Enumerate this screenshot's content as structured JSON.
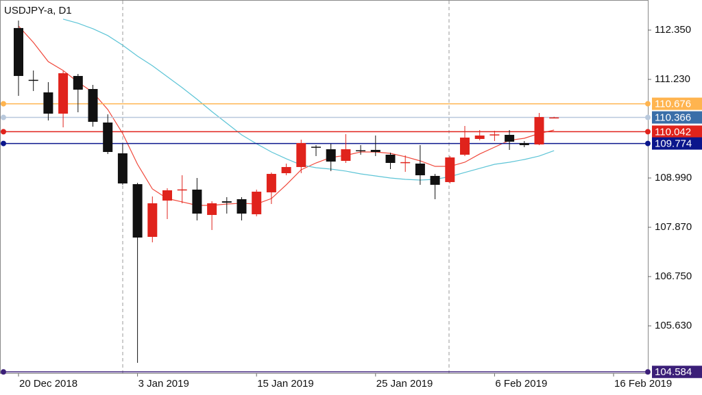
{
  "chart_data": {
    "type": "candlestick",
    "title": "USDJPY-a, D1",
    "categories": [
      "20 Dec 2018",
      null,
      null,
      null,
      null,
      null,
      null,
      null,
      "3 Jan 2019",
      null,
      null,
      null,
      null,
      null,
      null,
      null,
      "15 Jan 2019",
      null,
      null,
      null,
      null,
      null,
      null,
      null,
      "25 Jan 2019",
      null,
      null,
      null,
      null,
      null,
      null,
      null,
      "6 Feb 2019",
      null,
      null,
      null,
      null,
      null,
      null,
      null,
      "16 Feb 2019"
    ],
    "open": [
      112.397,
      111.22,
      110.935,
      110.452,
      111.308,
      111.012,
      110.25,
      109.55,
      108.85,
      107.652,
      108.477,
      108.72,
      108.726,
      108.15,
      108.46,
      108.508,
      108.166,
      108.664,
      109.099,
      109.239,
      109.7,
      109.643,
      109.379,
      109.62,
      109.628,
      109.519,
      109.34,
      109.317,
      109.037,
      108.897,
      109.519,
      109.877,
      109.97,
      109.97,
      109.783,
      109.752,
      110.36,
      null,
      null,
      null,
      null
    ],
    "high": [
      112.568,
      111.432,
      111.168,
      111.417,
      111.354,
      111.106,
      110.437,
      109.768,
      108.881,
      108.57,
      108.757,
      109.052,
      108.99,
      108.461,
      108.555,
      108.555,
      108.726,
      109.115,
      109.317,
      109.861,
      109.737,
      109.768,
      109.986,
      109.737,
      109.955,
      109.566,
      109.504,
      109.737,
      109.083,
      109.488,
      110.172,
      110.079,
      110.063,
      110.079,
      109.83,
      110.468,
      110.38,
      null,
      null,
      null,
      null
    ],
    "low": [
      110.857,
      110.966,
      110.297,
      110.141,
      110.483,
      110.157,
      109.534,
      108.835,
      104.79,
      107.528,
      108.057,
      108.415,
      108.026,
      107.808,
      108.181,
      108.026,
      108.119,
      108.399,
      109.052,
      109.099,
      109.488,
      109.146,
      109.332,
      109.519,
      109.488,
      109.192,
      109.13,
      108.835,
      108.508,
      108.866,
      109.488,
      109.846,
      109.83,
      109.628,
      109.69,
      109.737,
      110.35,
      null,
      null,
      null,
      null
    ],
    "close": [
      111.308,
      111.21,
      110.452,
      111.37,
      110.997,
      110.266,
      109.581,
      108.866,
      107.637,
      108.415,
      108.71,
      108.73,
      108.181,
      108.415,
      108.43,
      108.181,
      108.679,
      109.083,
      109.239,
      109.783,
      109.69,
      109.363,
      109.643,
      109.61,
      109.581,
      109.332,
      109.35,
      109.052,
      108.835,
      109.457,
      109.908,
      109.955,
      109.98,
      109.815,
      109.737,
      110.375,
      110.366,
      null,
      null,
      null,
      null
    ],
    "up_color": "#e0231c",
    "down_color": "#111111",
    "series": [
      {
        "color": "#f0473a",
        "values": [
          112.443,
          112.07,
          111.634,
          111.432,
          111.168,
          110.935,
          110.546,
          110.001,
          109.301,
          108.741,
          108.523,
          108.446,
          108.368,
          108.368,
          108.399,
          108.415,
          108.399,
          108.523,
          108.835,
          109.177,
          109.332,
          109.457,
          109.504,
          109.581,
          109.581,
          109.55,
          109.473,
          109.379,
          109.254,
          109.254,
          109.348,
          109.535,
          109.69,
          109.846,
          109.892,
          110.001,
          110.079,
          null,
          null,
          null,
          null
        ]
      },
      {
        "color": "#5cc4d6",
        "values": [
          null,
          null,
          null,
          112.599,
          112.506,
          112.381,
          112.226,
          112.008,
          111.759,
          111.541,
          111.292,
          111.043,
          110.779,
          110.499,
          110.234,
          109.97,
          109.768,
          109.581,
          109.426,
          109.286,
          109.223,
          109.192,
          109.146,
          109.083,
          109.037,
          108.99,
          108.959,
          108.943,
          108.959,
          109.021,
          109.115,
          109.208,
          109.301,
          109.348,
          109.41,
          109.488,
          109.612,
          null,
          null,
          null,
          null
        ]
      }
    ],
    "levels": [
      {
        "value": 110.676,
        "label": "110.676",
        "color": "#ffb44f",
        "box": "#ffb44f"
      },
      {
        "value": 110.366,
        "label": "110.366",
        "color": "#b8c8dc",
        "box": "#3a6ea8"
      },
      {
        "value": 110.042,
        "label": "110.042",
        "color": "#e0231c",
        "box": "#e0231c"
      },
      {
        "value": 109.774,
        "label": "109.774",
        "color": "#0b168c",
        "box": "#0b168c"
      },
      {
        "value": 104.584,
        "label": "104.584",
        "color": "#3b1f78",
        "box": "#3b1f78"
      }
    ],
    "ylim": [
      104.557,
      113.034
    ],
    "yticks": [
      {
        "value": 112.35,
        "label": "112.350"
      },
      {
        "value": 111.23,
        "label": "111.230"
      },
      {
        "value": 108.99,
        "label": "108.990"
      },
      {
        "value": 107.87,
        "label": "107.870"
      },
      {
        "value": 106.75,
        "label": "106.750"
      },
      {
        "value": 105.63,
        "label": "105.630"
      }
    ]
  }
}
